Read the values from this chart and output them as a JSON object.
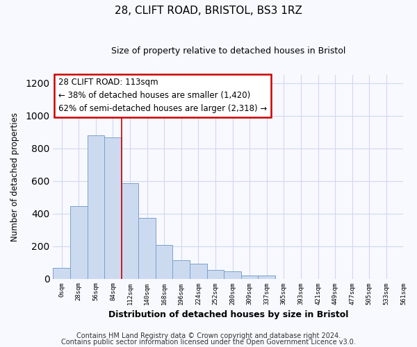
{
  "title1": "28, CLIFT ROAD, BRISTOL, BS3 1RZ",
  "title2": "Size of property relative to detached houses in Bristol",
  "xlabel": "Distribution of detached houses by size in Bristol",
  "ylabel": "Number of detached properties",
  "bar_color": "#ccdaf0",
  "bar_edge_color": "#7aA0cc",
  "grid_color": "#d0d8ee",
  "bg_color": "#f8f9ff",
  "plot_bg_color": "#f8f9ff",
  "tick_labels": [
    "0sqm",
    "28sqm",
    "56sqm",
    "84sqm",
    "112sqm",
    "140sqm",
    "168sqm",
    "196sqm",
    "224sqm",
    "252sqm",
    "280sqm",
    "309sqm",
    "337sqm",
    "365sqm",
    "393sqm",
    "421sqm",
    "449sqm",
    "477sqm",
    "505sqm",
    "533sqm",
    "561sqm"
  ],
  "bar_heights": [
    65,
    445,
    880,
    865,
    585,
    375,
    205,
    115,
    90,
    55,
    45,
    18,
    18,
    0,
    0,
    0,
    0,
    0,
    0,
    0
  ],
  "ylim": [
    0,
    1250
  ],
  "yticks": [
    0,
    200,
    400,
    600,
    800,
    1000,
    1200
  ],
  "annotation_title": "28 CLIFT ROAD: 113sqm",
  "annotation_line1": "← 38% of detached houses are smaller (1,420)",
  "annotation_line2": "62% of semi-detached houses are larger (2,318) →",
  "annotation_box_color": "#ffffff",
  "annotation_box_edge": "#cc0000",
  "red_line_x": 3.5,
  "footer1": "Contains HM Land Registry data © Crown copyright and database right 2024.",
  "footer2": "Contains public sector information licensed under the Open Government Licence v3.0."
}
